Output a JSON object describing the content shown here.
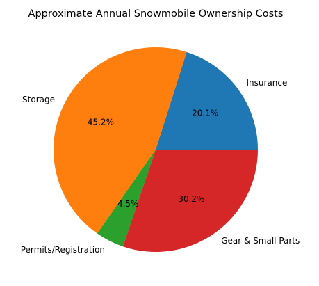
{
  "chart_data": {
    "type": "pie",
    "title": "Approximate Annual Snowmobile Ownership Costs",
    "slices": [
      {
        "label": "Insurance",
        "percent": 20.1,
        "percent_label": "20.1%",
        "color": "#1f77b4"
      },
      {
        "label": "Storage",
        "percent": 45.2,
        "percent_label": "45.2%",
        "color": "#ff7f0e"
      },
      {
        "label": "Permits/Registration",
        "percent": 4.5,
        "percent_label": "4.5%",
        "color": "#2ca02c"
      },
      {
        "label": "Gear & Small Parts",
        "percent": 30.2,
        "percent_label": "30.2%",
        "color": "#d62728"
      }
    ],
    "start_angle_deg": 0,
    "direction": "counterclockwise"
  }
}
